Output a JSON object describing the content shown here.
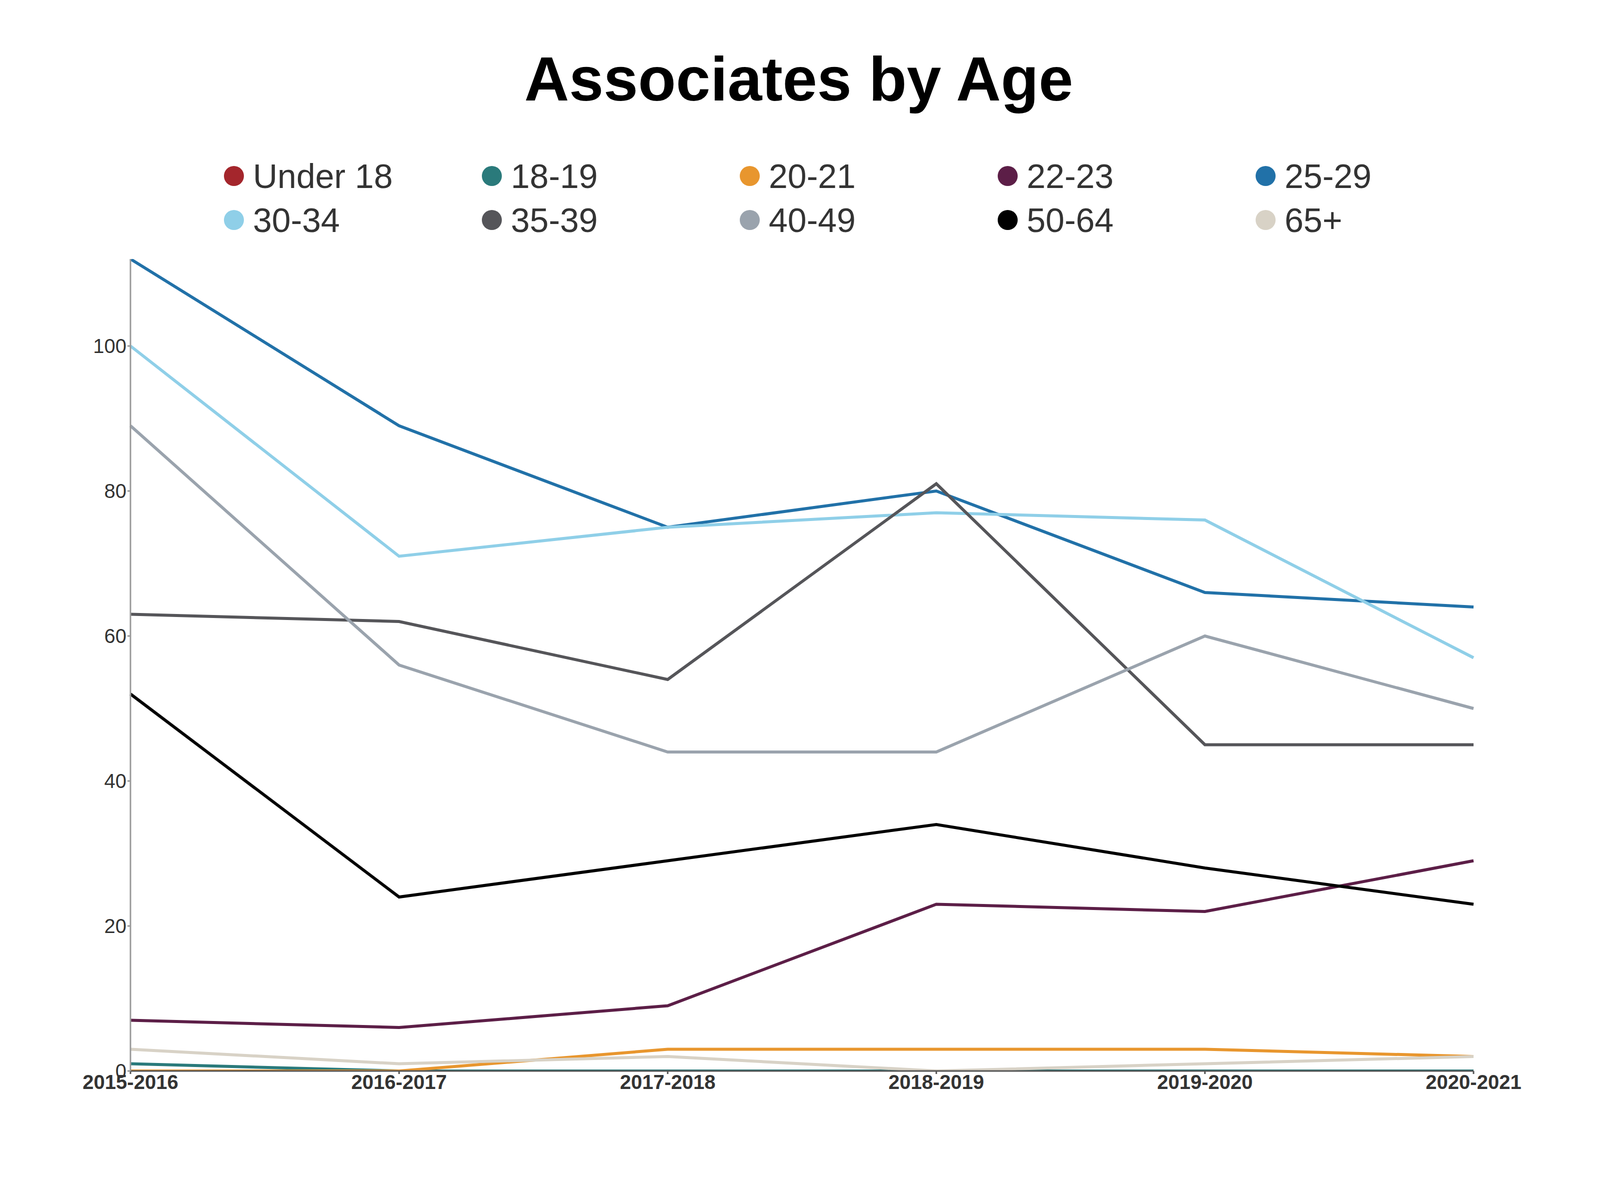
{
  "chart_data": {
    "type": "line",
    "title": "Associates by Age",
    "categories": [
      "2015-2016",
      "2016-2017",
      "2017-2018",
      "2018-2019",
      "2019-2020",
      "2020-2021"
    ],
    "series": [
      {
        "name": "Under 18",
        "color": "#a4262c",
        "values": [
          0,
          0,
          0,
          0,
          0,
          0
        ]
      },
      {
        "name": "18-19",
        "color": "#2a7a7b",
        "values": [
          1,
          0,
          0,
          0,
          0,
          0
        ]
      },
      {
        "name": "20-21",
        "color": "#e8962e",
        "values": [
          0,
          0,
          3,
          3,
          3,
          2
        ]
      },
      {
        "name": "22-23",
        "color": "#5c1e47",
        "values": [
          7,
          6,
          9,
          23,
          22,
          29
        ]
      },
      {
        "name": "25-29",
        "color": "#2171a8",
        "values": [
          112,
          89,
          75,
          80,
          66,
          64
        ]
      },
      {
        "name": "30-34",
        "color": "#8fcfe8",
        "values": [
          100,
          71,
          75,
          77,
          76,
          57
        ]
      },
      {
        "name": "35-39",
        "color": "#555559",
        "values": [
          63,
          62,
          54,
          81,
          45,
          45
        ]
      },
      {
        "name": "40-49",
        "color": "#9aa3ad",
        "values": [
          89,
          56,
          44,
          44,
          60,
          50
        ]
      },
      {
        "name": "50-64",
        "color": "#000000",
        "values": [
          52,
          24,
          29,
          34,
          28,
          23
        ]
      },
      {
        "name": "65+",
        "color": "#d8d2c6",
        "values": [
          3,
          1,
          2,
          0,
          1,
          2
        ]
      }
    ],
    "ylim": [
      0,
      112
    ],
    "yticks": [
      0,
      20,
      40,
      60,
      80,
      100
    ],
    "grid": false,
    "legend": "top"
  }
}
